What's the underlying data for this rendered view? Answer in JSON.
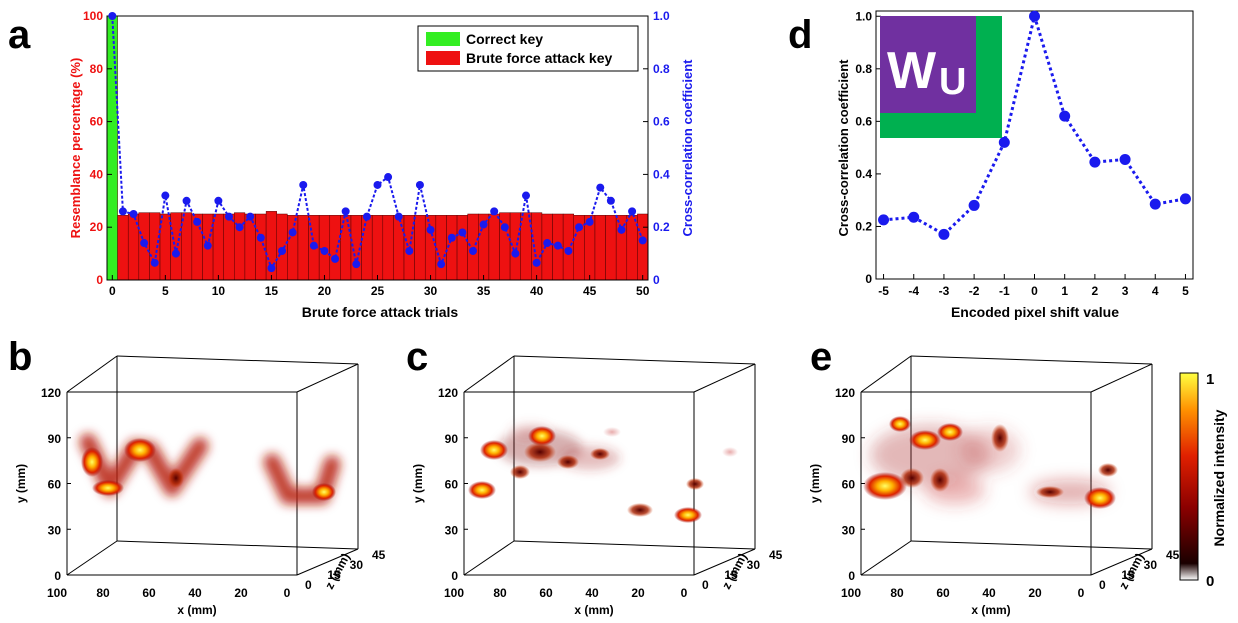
{
  "panel_letters": {
    "a": "a",
    "b": "b",
    "c": "c",
    "d": "d",
    "e": "e"
  },
  "colors": {
    "red_bar": "#ee1111",
    "green_bar": "#33ee22",
    "blue": "#1a1aee",
    "heat_dark": "#3a0000",
    "heat_mid": "#d62000",
    "heat_hot": "#ffd400",
    "purple": "#7030a0",
    "green_logo": "#00b050"
  },
  "chart_data": [
    {
      "panel": "a",
      "type": "bar",
      "xlabel": "Brute force attack trials",
      "ylabel_left": "Resemblance percentage (%)",
      "ylabel_right": "Cross-correlation coefficient",
      "xlim": [
        -0.5,
        50.5
      ],
      "ylim_left": [
        0,
        100
      ],
      "ylim_right": [
        0,
        1
      ],
      "x_ticks": [
        0,
        5,
        10,
        15,
        20,
        25,
        30,
        35,
        40,
        45,
        50
      ],
      "y_ticks_left": [
        0,
        20,
        40,
        60,
        80,
        100
      ],
      "y_ticks_right": [
        0,
        0.2,
        0.4,
        0.6,
        0.8,
        1.0
      ],
      "y_tick_labels_right": [
        "0",
        "0.2",
        "0.4",
        "0.6",
        "0.8",
        "1.0"
      ],
      "legend": {
        "position": "top-right",
        "entries": [
          "Correct key",
          "Brute force attack key"
        ]
      },
      "bars": {
        "x": [
          0,
          1,
          2,
          3,
          4,
          5,
          6,
          7,
          8,
          9,
          10,
          11,
          12,
          13,
          14,
          15,
          16,
          17,
          18,
          19,
          20,
          21,
          22,
          23,
          24,
          25,
          26,
          27,
          28,
          29,
          30,
          31,
          32,
          33,
          34,
          35,
          36,
          37,
          38,
          39,
          40,
          41,
          42,
          43,
          44,
          45,
          46,
          47,
          48,
          49,
          50
        ],
        "values": [
          100,
          24.5,
          25,
          25.5,
          25.5,
          25,
          25.5,
          25.5,
          25,
          25,
          25,
          25,
          25.5,
          25,
          25,
          26,
          25,
          24.5,
          24.5,
          24.5,
          24.5,
          24.5,
          24.5,
          24.5,
          24.5,
          24.5,
          24.5,
          24.5,
          24.5,
          24.5,
          24.5,
          24.5,
          24.5,
          24.5,
          25,
          25,
          25,
          25.5,
          25.5,
          25.5,
          25.5,
          25,
          25,
          25,
          24.5,
          24.5,
          24.5,
          24.5,
          24.5,
          24.5,
          25
        ]
      },
      "series": [
        {
          "type": "line",
          "axis": "right",
          "x": [
            0,
            1,
            2,
            3,
            4,
            5,
            6,
            7,
            8,
            9,
            10,
            11,
            12,
            13,
            14,
            15,
            16,
            17,
            18,
            19,
            20,
            21,
            22,
            23,
            24,
            25,
            26,
            27,
            28,
            29,
            30,
            31,
            32,
            33,
            34,
            35,
            36,
            37,
            38,
            39,
            40,
            41,
            42,
            43,
            44,
            45,
            46,
            47,
            48,
            49,
            50
          ],
          "values": [
            1.0,
            0.26,
            0.25,
            0.14,
            0.065,
            0.32,
            0.1,
            0.3,
            0.22,
            0.13,
            0.3,
            0.24,
            0.2,
            0.24,
            0.16,
            0.045,
            0.11,
            0.18,
            0.36,
            0.13,
            0.11,
            0.08,
            0.26,
            0.06,
            0.24,
            0.36,
            0.39,
            0.24,
            0.11,
            0.36,
            0.19,
            0.06,
            0.16,
            0.18,
            0.11,
            0.21,
            0.26,
            0.2,
            0.1,
            0.32,
            0.065,
            0.14,
            0.13,
            0.11,
            0.2,
            0.22,
            0.35,
            0.3,
            0.19,
            0.26,
            0.15
          ]
        }
      ]
    },
    {
      "panel": "d",
      "type": "line",
      "xlabel": "Encoded pixel shift value",
      "ylabel": "Cross-correlation coefficient",
      "xlim": [
        -5.25,
        5.25
      ],
      "ylim": [
        0,
        1.02
      ],
      "x_ticks": [
        -5,
        -4,
        -3,
        -2,
        -1,
        0,
        1,
        2,
        3,
        4,
        5
      ],
      "y_ticks": [
        0,
        0.2,
        0.4,
        0.6,
        0.8,
        1.0
      ],
      "y_tick_labels": [
        "0",
        "0.2",
        "0.4",
        "0.6",
        "0.8",
        "1.0"
      ],
      "x": [
        -5,
        -4,
        -3,
        -2,
        -1,
        0,
        1,
        2,
        3,
        4,
        5
      ],
      "values": [
        0.225,
        0.235,
        0.17,
        0.28,
        0.52,
        1.0,
        0.62,
        0.445,
        0.455,
        0.285,
        0.305
      ],
      "inset_logo_text": [
        "W",
        "U"
      ]
    },
    {
      "panel": "b",
      "type": "heatmap",
      "xlabel": "x (mm)",
      "ylabel": "y (mm)",
      "zlabel": "z (mm)",
      "x_ticks": [
        "100",
        "80",
        "60",
        "40",
        "20",
        "0"
      ],
      "y_ticks": [
        "0",
        "30",
        "60",
        "90",
        "120"
      ],
      "z_ticks": [
        "0",
        "15",
        "30",
        "45"
      ]
    },
    {
      "panel": "c",
      "type": "heatmap",
      "xlabel": "x (mm)",
      "ylabel": "y (mm)",
      "zlabel": "z (mm)",
      "x_ticks": [
        "100",
        "80",
        "60",
        "40",
        "20",
        "0"
      ],
      "y_ticks": [
        "0",
        "30",
        "60",
        "90",
        "120"
      ],
      "z_ticks": [
        "0",
        "15",
        "30",
        "45"
      ]
    },
    {
      "panel": "e",
      "type": "heatmap",
      "xlabel": "x (mm)",
      "ylabel": "y (mm)",
      "zlabel": "z (mm)",
      "x_ticks": [
        "100",
        "80",
        "60",
        "40",
        "20",
        "0"
      ],
      "y_ticks": [
        "0",
        "30",
        "60",
        "90",
        "120"
      ],
      "z_ticks": [
        "0",
        "15",
        "30",
        "45"
      ],
      "colorbar": {
        "label": "Normalized intensity",
        "min_label": "0",
        "max_label": "1"
      }
    }
  ]
}
